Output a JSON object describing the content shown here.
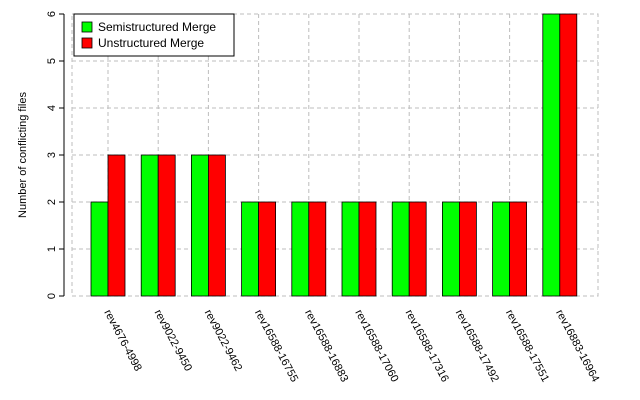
{
  "chart_data": {
    "type": "bar",
    "title": "",
    "xlabel": "",
    "ylabel": "Number of conflicting files",
    "ylim": [
      0,
      6
    ],
    "yticks": [
      0,
      1,
      2,
      3,
      4,
      5,
      6
    ],
    "grid": true,
    "legend_position": "top-left",
    "categories": [
      "rev4676-4998",
      "rev9022-9450",
      "rev9022-9462",
      "rev16588-16755",
      "rev16588-16883",
      "rev16588-17060",
      "rev16588-17316",
      "rev16588-17492",
      "rev16588-17551",
      "rev16883-16964"
    ],
    "series": [
      {
        "name": "Semistructured Merge",
        "color": "#00ff00",
        "values": [
          2,
          3,
          3,
          2,
          2,
          2,
          2,
          2,
          2,
          6
        ]
      },
      {
        "name": "Unstructured Merge",
        "color": "#ff0000",
        "values": [
          3,
          3,
          3,
          2,
          2,
          2,
          2,
          2,
          2,
          6
        ]
      }
    ]
  }
}
